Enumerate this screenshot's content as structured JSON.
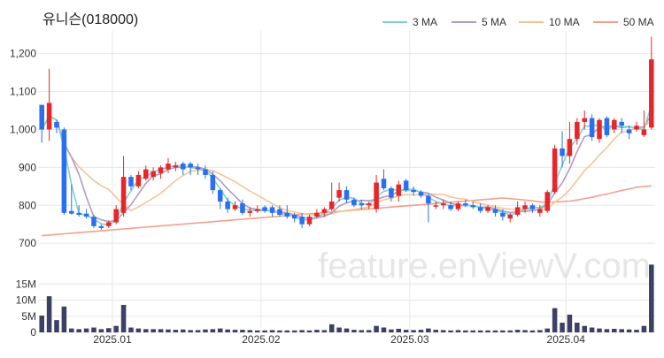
{
  "title": "유니슨(018000)",
  "watermark": "feature.enViewV.com",
  "colors": {
    "up": "#e8262a",
    "down": "#2a6ff0",
    "volume": "#3d4065",
    "grid": "#e7e7e7",
    "axis_text": "#333333",
    "ma3": "#7fd2cc",
    "ma5": "#b39bc4",
    "ma10": "#f2c694",
    "ma50": "#f3a08d"
  },
  "chart_data": {
    "type": "candlestick",
    "legend": [
      {
        "name": "3 MA",
        "color": "#7fd2cc"
      },
      {
        "name": "5 MA",
        "color": "#b39bc4"
      },
      {
        "name": "10 MA",
        "color": "#f2c694"
      },
      {
        "name": "50 MA",
        "color": "#f3a08d"
      }
    ],
    "legend_position": "top-right",
    "price_ticks": [
      "700",
      "800",
      "900",
      "1,000",
      "1,100",
      "1,200"
    ],
    "price_tick_values": [
      700,
      800,
      900,
      1000,
      1100,
      1200
    ],
    "price_range": [
      670,
      1260
    ],
    "volume_ticks": [
      "0",
      "5M",
      "10M",
      "15M"
    ],
    "volume_tick_values": [
      0,
      5,
      10,
      15
    ],
    "volume_range": [
      0,
      20
    ],
    "x_labels": [
      {
        "label": "2025.01",
        "index": 9.5
      },
      {
        "label": "2025.02",
        "index": 29.5
      },
      {
        "label": "2025.03",
        "index": 49.5
      },
      {
        "label": "2025.04",
        "index": 70.5
      }
    ],
    "candles": [
      [
        1065,
        1065,
        965,
        1000,
        5.2
      ],
      [
        1000,
        1160,
        970,
        1070,
        11.2
      ],
      [
        1020,
        1025,
        990,
        1005,
        3.8
      ],
      [
        1000,
        1005,
        775,
        780,
        8.0
      ],
      [
        785,
        855,
        775,
        778,
        1.2
      ],
      [
        780,
        800,
        770,
        775,
        1.0
      ],
      [
        778,
        790,
        765,
        770,
        1.2
      ],
      [
        770,
        775,
        740,
        745,
        1.5
      ],
      [
        745,
        750,
        735,
        740,
        1.0
      ],
      [
        745,
        760,
        740,
        755,
        1.3
      ],
      [
        755,
        800,
        750,
        790,
        2.0
      ],
      [
        780,
        930,
        770,
        875,
        8.5
      ],
      [
        875,
        880,
        840,
        850,
        1.5
      ],
      [
        850,
        890,
        845,
        880,
        1.2
      ],
      [
        870,
        905,
        865,
        895,
        1.0
      ],
      [
        875,
        900,
        865,
        890,
        1.0
      ],
      [
        885,
        905,
        870,
        900,
        1.0
      ],
      [
        895,
        925,
        885,
        910,
        0.9
      ],
      [
        900,
        915,
        890,
        905,
        0.8
      ],
      [
        910,
        915,
        880,
        895,
        0.9
      ],
      [
        910,
        915,
        880,
        900,
        0.7
      ],
      [
        900,
        910,
        880,
        895,
        0.7
      ],
      [
        895,
        905,
        870,
        880,
        0.9
      ],
      [
        880,
        890,
        830,
        840,
        1.0
      ],
      [
        840,
        845,
        790,
        810,
        1.2
      ],
      [
        810,
        820,
        780,
        790,
        0.9
      ],
      [
        790,
        810,
        785,
        800,
        0.8
      ],
      [
        805,
        815,
        775,
        780,
        0.8
      ],
      [
        780,
        795,
        770,
        785,
        0.7
      ],
      [
        785,
        800,
        780,
        790,
        0.6
      ],
      [
        795,
        800,
        780,
        785,
        0.6
      ],
      [
        795,
        800,
        770,
        780,
        0.7
      ],
      [
        790,
        800,
        770,
        775,
        0.6
      ],
      [
        780,
        800,
        765,
        770,
        0.6
      ],
      [
        775,
        780,
        755,
        765,
        0.6
      ],
      [
        770,
        780,
        740,
        750,
        0.7
      ],
      [
        750,
        775,
        745,
        770,
        0.6
      ],
      [
        770,
        790,
        765,
        780,
        0.8
      ],
      [
        780,
        795,
        770,
        790,
        0.7
      ],
      [
        790,
        860,
        785,
        810,
        2.5
      ],
      [
        820,
        860,
        810,
        840,
        1.5
      ],
      [
        840,
        850,
        805,
        815,
        1.2
      ],
      [
        815,
        820,
        795,
        800,
        0.8
      ],
      [
        805,
        815,
        790,
        800,
        0.7
      ],
      [
        800,
        810,
        790,
        805,
        0.7
      ],
      [
        790,
        880,
        780,
        860,
        2.0
      ],
      [
        870,
        895,
        840,
        845,
        1.5
      ],
      [
        845,
        850,
        810,
        820,
        0.9
      ],
      [
        825,
        865,
        810,
        855,
        1.1
      ],
      [
        865,
        870,
        835,
        840,
        0.8
      ],
      [
        840,
        850,
        825,
        835,
        0.7
      ],
      [
        835,
        840,
        820,
        825,
        0.8
      ],
      [
        825,
        830,
        755,
        805,
        1.2
      ],
      [
        800,
        810,
        790,
        800,
        0.8
      ],
      [
        800,
        815,
        790,
        805,
        0.7
      ],
      [
        800,
        810,
        785,
        790,
        0.6
      ],
      [
        790,
        810,
        785,
        805,
        0.7
      ],
      [
        805,
        815,
        795,
        800,
        0.6
      ],
      [
        800,
        810,
        790,
        795,
        0.6
      ],
      [
        795,
        805,
        780,
        785,
        0.6
      ],
      [
        785,
        800,
        780,
        795,
        0.6
      ],
      [
        790,
        800,
        770,
        780,
        0.6
      ],
      [
        780,
        790,
        760,
        770,
        0.6
      ],
      [
        765,
        780,
        755,
        775,
        0.6
      ],
      [
        775,
        810,
        770,
        795,
        0.8
      ],
      [
        790,
        810,
        780,
        800,
        0.7
      ],
      [
        800,
        805,
        780,
        790,
        0.6
      ],
      [
        780,
        800,
        770,
        790,
        0.7
      ],
      [
        785,
        840,
        780,
        835,
        1.2
      ],
      [
        835,
        960,
        830,
        950,
        7.5
      ],
      [
        950,
        995,
        900,
        930,
        3.0
      ],
      [
        930,
        1020,
        910,
        975,
        5.5
      ],
      [
        975,
        1030,
        960,
        1020,
        3.0
      ],
      [
        1020,
        1050,
        1000,
        1030,
        2.0
      ],
      [
        1030,
        1040,
        970,
        980,
        1.5
      ],
      [
        975,
        1030,
        965,
        1025,
        1.2
      ],
      [
        1030,
        1035,
        980,
        985,
        1.0
      ],
      [
        1000,
        1030,
        990,
        1025,
        1.1
      ],
      [
        1020,
        1030,
        990,
        1010,
        1.0
      ],
      [
        1000,
        1010,
        975,
        990,
        0.9
      ],
      [
        1000,
        1020,
        995,
        1010,
        0.8
      ],
      [
        985,
        1050,
        980,
        1000,
        2.0
      ],
      [
        1005,
        1245,
        1000,
        1185,
        21.0
      ]
    ]
  }
}
